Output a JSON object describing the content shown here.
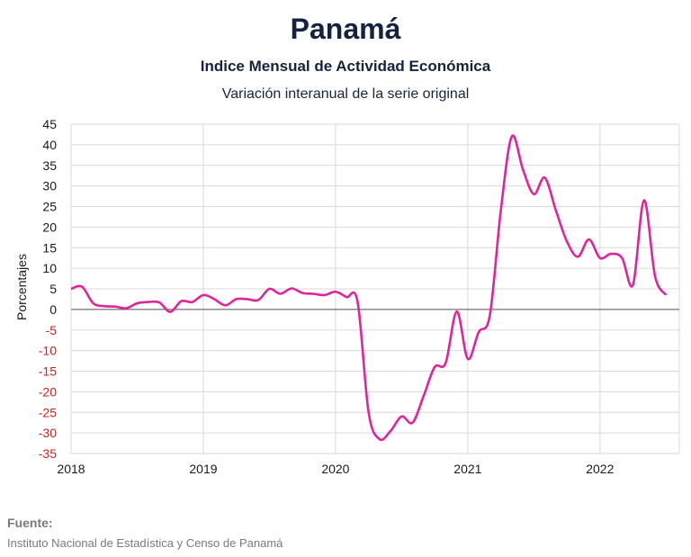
{
  "chart_data": {
    "type": "line",
    "title": "Panamá",
    "subtitle": "Indice Mensual de  Actividad Económica",
    "subtitle2": "Variación interanual de la serie original",
    "ylabel": "Porcentajes",
    "xlabel": "",
    "ylim": [
      -35,
      45
    ],
    "yticks": [
      45,
      40,
      35,
      30,
      25,
      20,
      15,
      10,
      5,
      0,
      -5,
      -10,
      -15,
      -20,
      -25,
      -30,
      -35
    ],
    "xticks": [
      {
        "label": "2018",
        "x": 2018
      },
      {
        "label": "2019",
        "x": 2019
      },
      {
        "label": "2020",
        "x": 2020
      },
      {
        "label": "2021",
        "x": 2021
      },
      {
        "label": "2022",
        "x": 2022
      }
    ],
    "xlim": [
      2018,
      2022.6
    ],
    "grid": true,
    "legend": "none",
    "colors": {
      "line": "#e0259b",
      "negative_tick": "#cc1f1f",
      "positive_tick": "#1a1a1a",
      "title": "#14243f"
    },
    "series": [
      {
        "values": [
          [
            2018.0,
            5
          ],
          [
            2018.083,
            5.5
          ],
          [
            2018.167,
            1.5
          ],
          [
            2018.25,
            0.8
          ],
          [
            2018.333,
            0.7
          ],
          [
            2018.417,
            0.3
          ],
          [
            2018.5,
            1.5
          ],
          [
            2018.583,
            1.8
          ],
          [
            2018.667,
            1.7
          ],
          [
            2018.75,
            -0.6
          ],
          [
            2018.833,
            2.0
          ],
          [
            2018.917,
            1.8
          ],
          [
            2019.0,
            3.5
          ],
          [
            2019.083,
            2.5
          ],
          [
            2019.167,
            1.0
          ],
          [
            2019.25,
            2.5
          ],
          [
            2019.333,
            2.5
          ],
          [
            2019.417,
            2.3
          ],
          [
            2019.5,
            5.0
          ],
          [
            2019.583,
            3.8
          ],
          [
            2019.667,
            5.1
          ],
          [
            2019.75,
            4.0
          ],
          [
            2019.833,
            3.8
          ],
          [
            2019.917,
            3.5
          ],
          [
            2020.0,
            4.3
          ],
          [
            2020.083,
            3.0
          ],
          [
            2020.167,
            1.8
          ],
          [
            2020.25,
            -25
          ],
          [
            2020.333,
            -31.5
          ],
          [
            2020.417,
            -29.5
          ],
          [
            2020.5,
            -26
          ],
          [
            2020.583,
            -27.5
          ],
          [
            2020.667,
            -21
          ],
          [
            2020.75,
            -14
          ],
          [
            2020.833,
            -13
          ],
          [
            2020.917,
            -0.5
          ],
          [
            2021.0,
            -12
          ],
          [
            2021.083,
            -5.5
          ],
          [
            2021.167,
            -1.5
          ],
          [
            2021.25,
            24
          ],
          [
            2021.333,
            42
          ],
          [
            2021.417,
            34
          ],
          [
            2021.5,
            28
          ],
          [
            2021.583,
            32
          ],
          [
            2021.667,
            24
          ],
          [
            2021.75,
            16.5
          ],
          [
            2021.833,
            12.8
          ],
          [
            2021.917,
            17
          ],
          [
            2022.0,
            12.5
          ],
          [
            2022.083,
            13.5
          ],
          [
            2022.167,
            12.5
          ],
          [
            2022.25,
            6.0
          ],
          [
            2022.333,
            26.5
          ],
          [
            2022.417,
            8.0
          ],
          [
            2022.5,
            3.5
          ]
        ]
      }
    ]
  },
  "source": {
    "label": "Fuente:",
    "text": "Instituto Nacional de Estadística y Censo de Panamá"
  }
}
